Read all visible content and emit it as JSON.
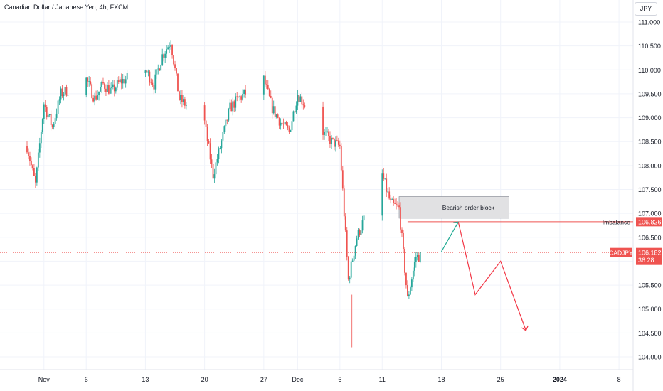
{
  "header": {
    "title": "Canadian Dollar / Japanese Yen, 4h, FXCM"
  },
  "currency_button": "JPY",
  "annotations": {
    "order_block": "Bearish order block",
    "imbalance_label": "Imbalance",
    "imbalance_price": "106.826",
    "symbol_tag": "CADJPY",
    "current_price": "106.182",
    "countdown": "36:28"
  },
  "colors": {
    "up": "#26a69a",
    "down": "#ef5350",
    "arrow_red": "#f23645",
    "arrow_green": "#22ab94",
    "grid": "#f0f3fa"
  },
  "chart_data": {
    "type": "candlestick",
    "title": "Canadian Dollar / Japanese Yen, 4h, FXCM",
    "ylim": [
      103.8,
      111.3
    ],
    "y_ticks": [
      "111.000",
      "110.500",
      "110.000",
      "109.500",
      "109.000",
      "108.500",
      "108.000",
      "107.500",
      "107.000",
      "106.500",
      "106.000",
      "105.500",
      "105.000",
      "104.500",
      "104.000"
    ],
    "x_ticks": [
      "Nov",
      "6",
      "13",
      "20",
      "27",
      "Dec",
      "6",
      "11",
      "18",
      "25",
      "2024",
      "8"
    ],
    "x_range": [
      "2023-10-30",
      "2024-01-09"
    ],
    "x_tick_dates": [
      "2023-11-01",
      "2023-11-06",
      "2023-11-13",
      "2023-11-20",
      "2023-11-27",
      "2023-12-01",
      "2023-12-06",
      "2023-12-11",
      "2023-12-18",
      "2023-12-25",
      "2024-01-01",
      "2024-01-08"
    ],
    "price_path": [
      [
        "2023-10-30",
        108.4
      ],
      [
        "2023-10-31",
        107.6
      ],
      [
        "2023-11-01",
        109.3
      ],
      [
        "2023-11-02",
        108.8
      ],
      [
        "2023-11-03",
        109.5
      ],
      [
        "2023-11-06",
        109.8
      ],
      [
        "2023-11-07",
        109.4
      ],
      [
        "2023-11-08",
        109.7
      ],
      [
        "2023-11-09",
        109.55
      ],
      [
        "2023-11-10",
        109.75
      ],
      [
        "2023-11-13",
        110.0
      ],
      [
        "2023-11-14",
        109.7
      ],
      [
        "2023-11-15",
        110.3
      ],
      [
        "2023-11-16",
        110.6
      ],
      [
        "2023-11-17",
        109.4
      ],
      [
        "2023-11-20",
        108.9
      ],
      [
        "2023-11-21",
        107.8
      ],
      [
        "2023-11-22",
        108.5
      ],
      [
        "2023-11-23",
        109.2
      ],
      [
        "2023-11-24",
        109.4
      ],
      [
        "2023-11-27",
        109.8
      ],
      [
        "2023-11-28",
        109.2
      ],
      [
        "2023-11-29",
        108.9
      ],
      [
        "2023-11-30",
        108.7
      ],
      [
        "2023-12-01",
        109.5
      ],
      [
        "2023-12-04",
        108.7
      ],
      [
        "2023-12-05",
        108.5
      ],
      [
        "2023-12-06",
        108.4
      ],
      [
        "2023-12-07",
        105.6
      ],
      [
        "2023-12-08",
        106.5
      ],
      [
        "2023-12-11",
        107.8
      ],
      [
        "2023-12-12",
        107.2
      ],
      [
        "2023-12-13",
        107.1
      ],
      [
        "2023-12-14",
        105.2
      ],
      [
        "2023-12-15",
        106.1
      ]
    ],
    "order_block": {
      "from": 106.9,
      "to": 107.35,
      "start": "2023-12-13",
      "end": "2023-12-26"
    },
    "imbalance_level": 106.826,
    "current_price": 106.182,
    "projection": [
      [
        "2023-12-18",
        106.2
      ],
      [
        "2023-12-20",
        106.82
      ],
      [
        "2023-12-22",
        105.3
      ],
      [
        "2023-12-25",
        106.0
      ],
      [
        "2023-12-28",
        104.55
      ]
    ]
  }
}
